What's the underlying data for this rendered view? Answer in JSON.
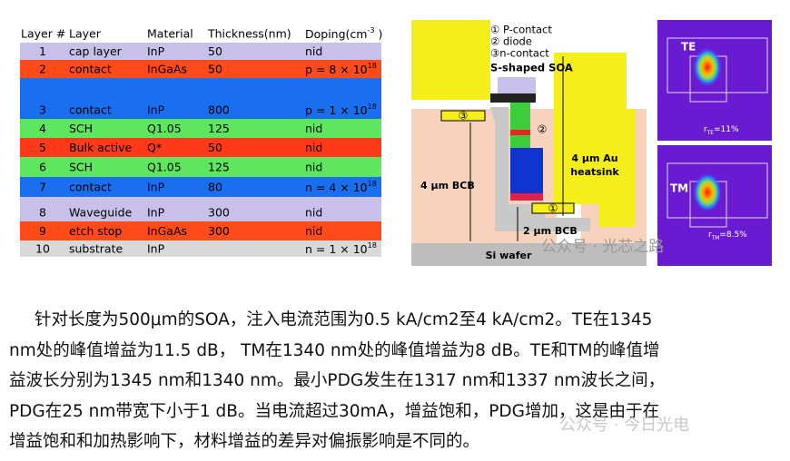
{
  "table": {
    "headers": [
      "Layer #",
      "Layer",
      "Material",
      "Thickness(nm)",
      {
        "text": "Doping(cm",
        "sup": "-3",
        "after": " )"
      }
    ],
    "rows": [
      [
        "1",
        "cap layer",
        "InP",
        "50",
        "nid"
      ],
      [
        "2",
        "contact",
        "InGaAs",
        "50",
        {
          "text": "p = 8 × 10",
          "sup": "18"
        }
      ],
      [
        "3",
        "contact",
        "InP",
        "800",
        {
          "text": "p = 1 × 10",
          "sup": "18"
        }
      ],
      [
        "4",
        "SCH",
        "Q1.05",
        "125",
        "nid"
      ],
      [
        "5",
        "Bulk active",
        "Q*",
        "50",
        "nid"
      ],
      [
        "6",
        "SCH",
        "Q1.05",
        "125",
        "nid"
      ],
      [
        "7",
        "contact",
        "InP",
        "80",
        {
          "text": "n = 4 × 10",
          "sup": "18"
        }
      ],
      [
        "8",
        "Waveguide",
        "InP",
        "300",
        "nid"
      ],
      [
        "9",
        "etch stop",
        "InGaAs",
        "300",
        "nid"
      ],
      [
        "10",
        "substrate",
        "InP",
        null,
        {
          "text": "n = 1 × 10",
          "sup": "18"
        }
      ]
    ]
  },
  "diagram": {
    "legend": [
      "① P-contact",
      "② diode",
      "③n-contact"
    ],
    "title": "S-shaped SOA",
    "markers": [
      "③",
      "②",
      "①"
    ],
    "heatsink": [
      "4 μm Au",
      "heatsink"
    ],
    "bcb_left": "4 μm BCB",
    "bcb_bottom": "2 μm BCB",
    "wafer": "Si wafer"
  },
  "modes": [
    {
      "label": "TE",
      "ratio": {
        "text": "r",
        "sub": "TE",
        "after": "=11%"
      }
    },
    {
      "label": "TM",
      "ratio": {
        "text": "r",
        "sub": "TM",
        "after": "=8.5%"
      }
    }
  ],
  "watermarks": [
    "公众号 · 光芯之路",
    "公众号 · 今日光电"
  ],
  "paragraph": [
    "针对长度为500μm的SOA，注入电流范围为0.5 kA/cm2至4 kA/cm2。TE在1345",
    "nm处的峰值增益为11.5 dB， TM在1340 nm处的峰值增益为8 dB。TE和TM的峰值增",
    "益波长分别为1345 nm和1340 nm。最小PDG发生在1317 nm和1337 nm波长之间，",
    "PDG在25 nm带宽下小于1 dB。当电流超过30mA，增益饱和，PDG增加，这是由于在",
    "增益饱和和加热影响下，材料增益的差异对偏振影响是不同的。"
  ]
}
